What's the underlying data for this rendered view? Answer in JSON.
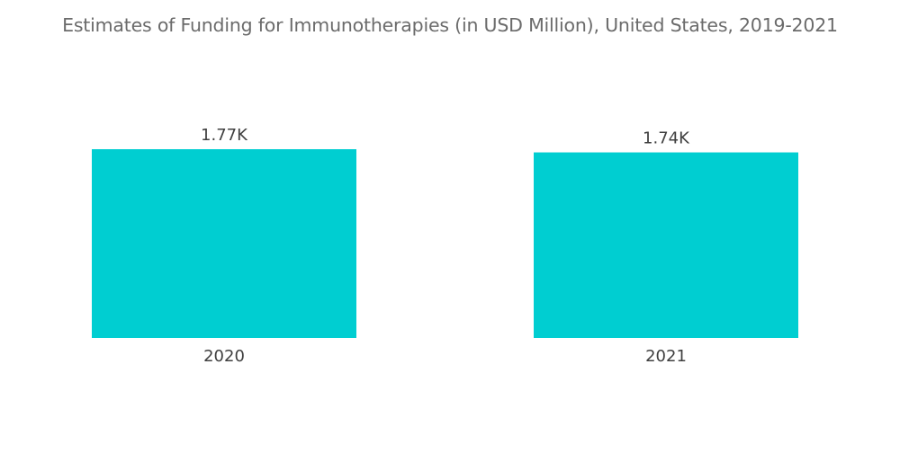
{
  "chart_data": {
    "type": "bar",
    "title": "Estimates of Funding for Immunotherapies (in USD Million), United States, 2019-2021",
    "categories": [
      "2020",
      "2021"
    ],
    "values": [
      1770,
      1740
    ],
    "value_labels": [
      "1.77K",
      "1.74K"
    ],
    "xlabel": "",
    "ylabel": "",
    "ylim": [
      0,
      1770
    ],
    "grid": false,
    "legend": "none",
    "bar_color": "#00ced1"
  }
}
